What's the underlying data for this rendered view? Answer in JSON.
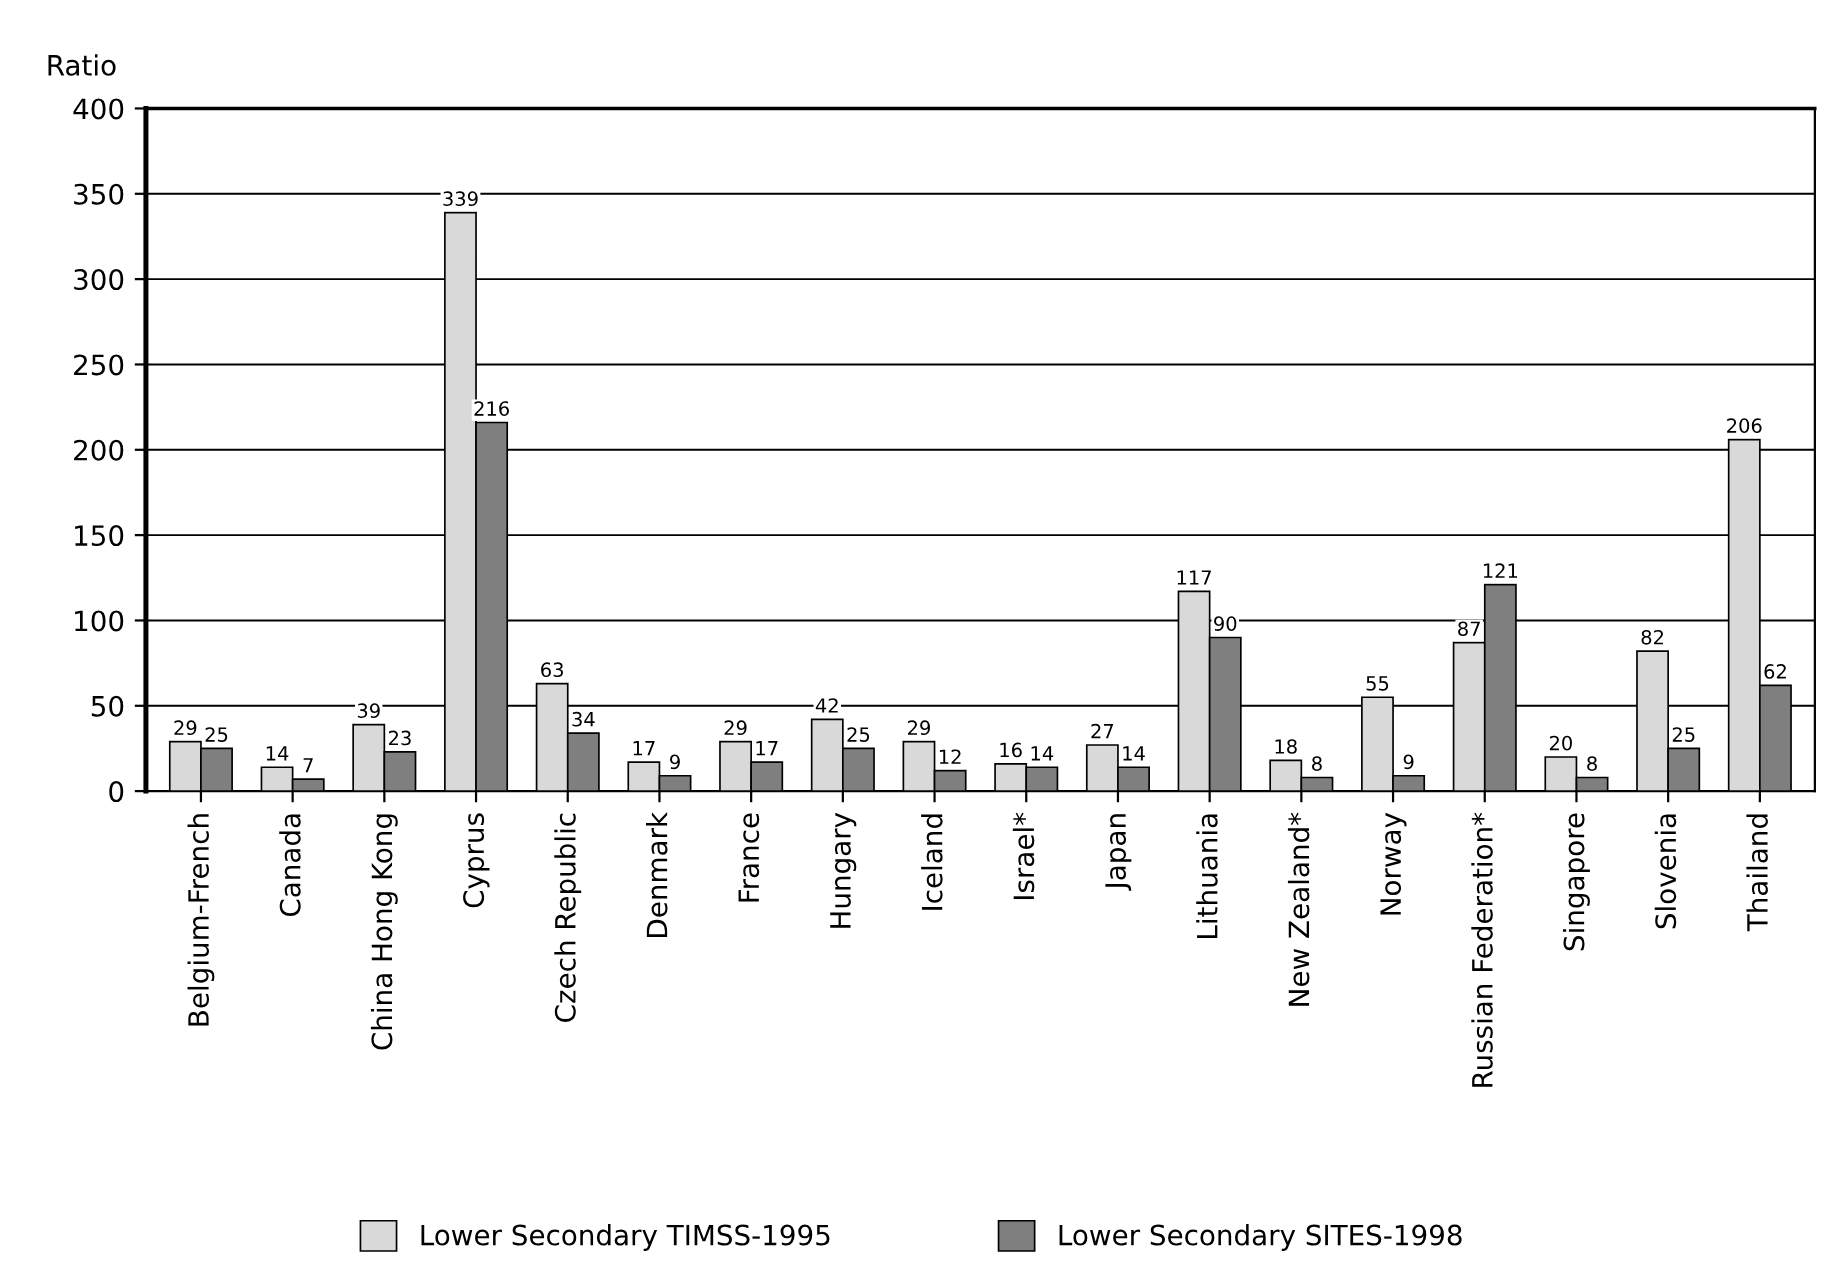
{
  "chart_data": {
    "type": "bar",
    "ylabel": "Ratio",
    "categories": [
      "Belgium-French",
      "Canada",
      "China Hong Kong",
      "Cyprus",
      "Czech Republic",
      "Denmark",
      "France",
      "Hungary",
      "Iceland",
      "Israel*",
      "Japan",
      "Lithuania",
      "New Zealand*",
      "Norway",
      "Russian Federation*",
      "Singapore",
      "Slovenia",
      "Thailand"
    ],
    "series": [
      {
        "name": "Lower Secondary TIMSS-1995",
        "color": "#d9d9d9",
        "values": [
          29,
          14,
          39,
          339,
          63,
          17,
          29,
          42,
          29,
          16,
          27,
          117,
          18,
          55,
          87,
          20,
          82,
          206
        ]
      },
      {
        "name": "Lower Secondary SITES-1998",
        "color": "#7f7f7f",
        "values": [
          25,
          7,
          23,
          216,
          34,
          9,
          17,
          25,
          12,
          14,
          14,
          90,
          8,
          9,
          121,
          8,
          25,
          62
        ]
      }
    ],
    "ylim": [
      0,
      400
    ],
    "yticks": [
      0,
      50,
      100,
      150,
      200,
      250,
      300,
      350,
      400
    ],
    "grid": "y",
    "legend": "bottom",
    "data_labels": true
  }
}
